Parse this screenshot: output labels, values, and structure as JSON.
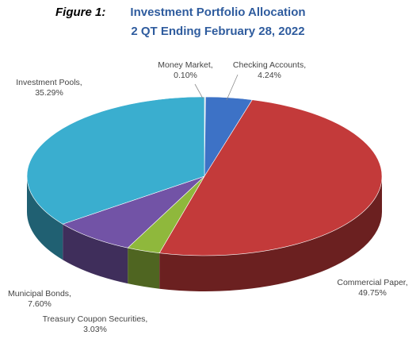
{
  "chart_data": {
    "type": "pie",
    "figure_label": "Figure 1:",
    "title": "Investment Portfolio Allocation",
    "subtitle": "2 QT Ending February 28, 2022",
    "categories": [
      "Money Market,",
      "Checking Accounts,",
      "Commercial Paper,",
      "Treasury Coupon Securities,",
      "Municipal Bonds,",
      "Investment Pools,"
    ],
    "values": [
      0.1,
      4.24,
      49.75,
      3.03,
      7.6,
      35.29
    ],
    "value_labels": [
      "0.10%",
      "4.24%",
      "49.75%",
      "3.03%",
      "7.60%",
      "35.29%"
    ],
    "colors": [
      "#e8e8e8",
      "#3d72c6",
      "#c33a3a",
      "#8fb83c",
      "#7253a6",
      "#3aaecf"
    ]
  }
}
